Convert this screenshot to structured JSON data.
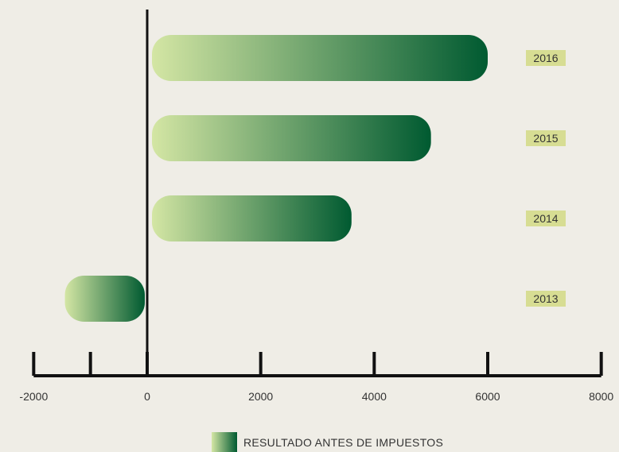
{
  "chart_data": {
    "type": "bar",
    "orientation": "horizontal",
    "categories": [
      "2016",
      "2015",
      "2014",
      "2013"
    ],
    "series": [
      {
        "name": "RESULTADO ANTES DE IMPUESTOS",
        "values": [
          6000,
          5000,
          3600,
          -1450
        ]
      }
    ],
    "xlim": [
      -2000,
      8000
    ],
    "xticks": [
      -2000,
      -1000,
      0,
      2000,
      4000,
      6000,
      8000
    ],
    "xtick_labels": [
      "-2000",
      "",
      "0",
      "2000",
      "4000",
      "6000",
      "8000"
    ],
    "grid": false,
    "legend_position": "bottom",
    "colors": {
      "bar_light": "#d4e6a4",
      "bar_dark": "#005a31",
      "label_bg": "#d7dd93",
      "axis": "#111111",
      "background": "#efede6"
    }
  }
}
